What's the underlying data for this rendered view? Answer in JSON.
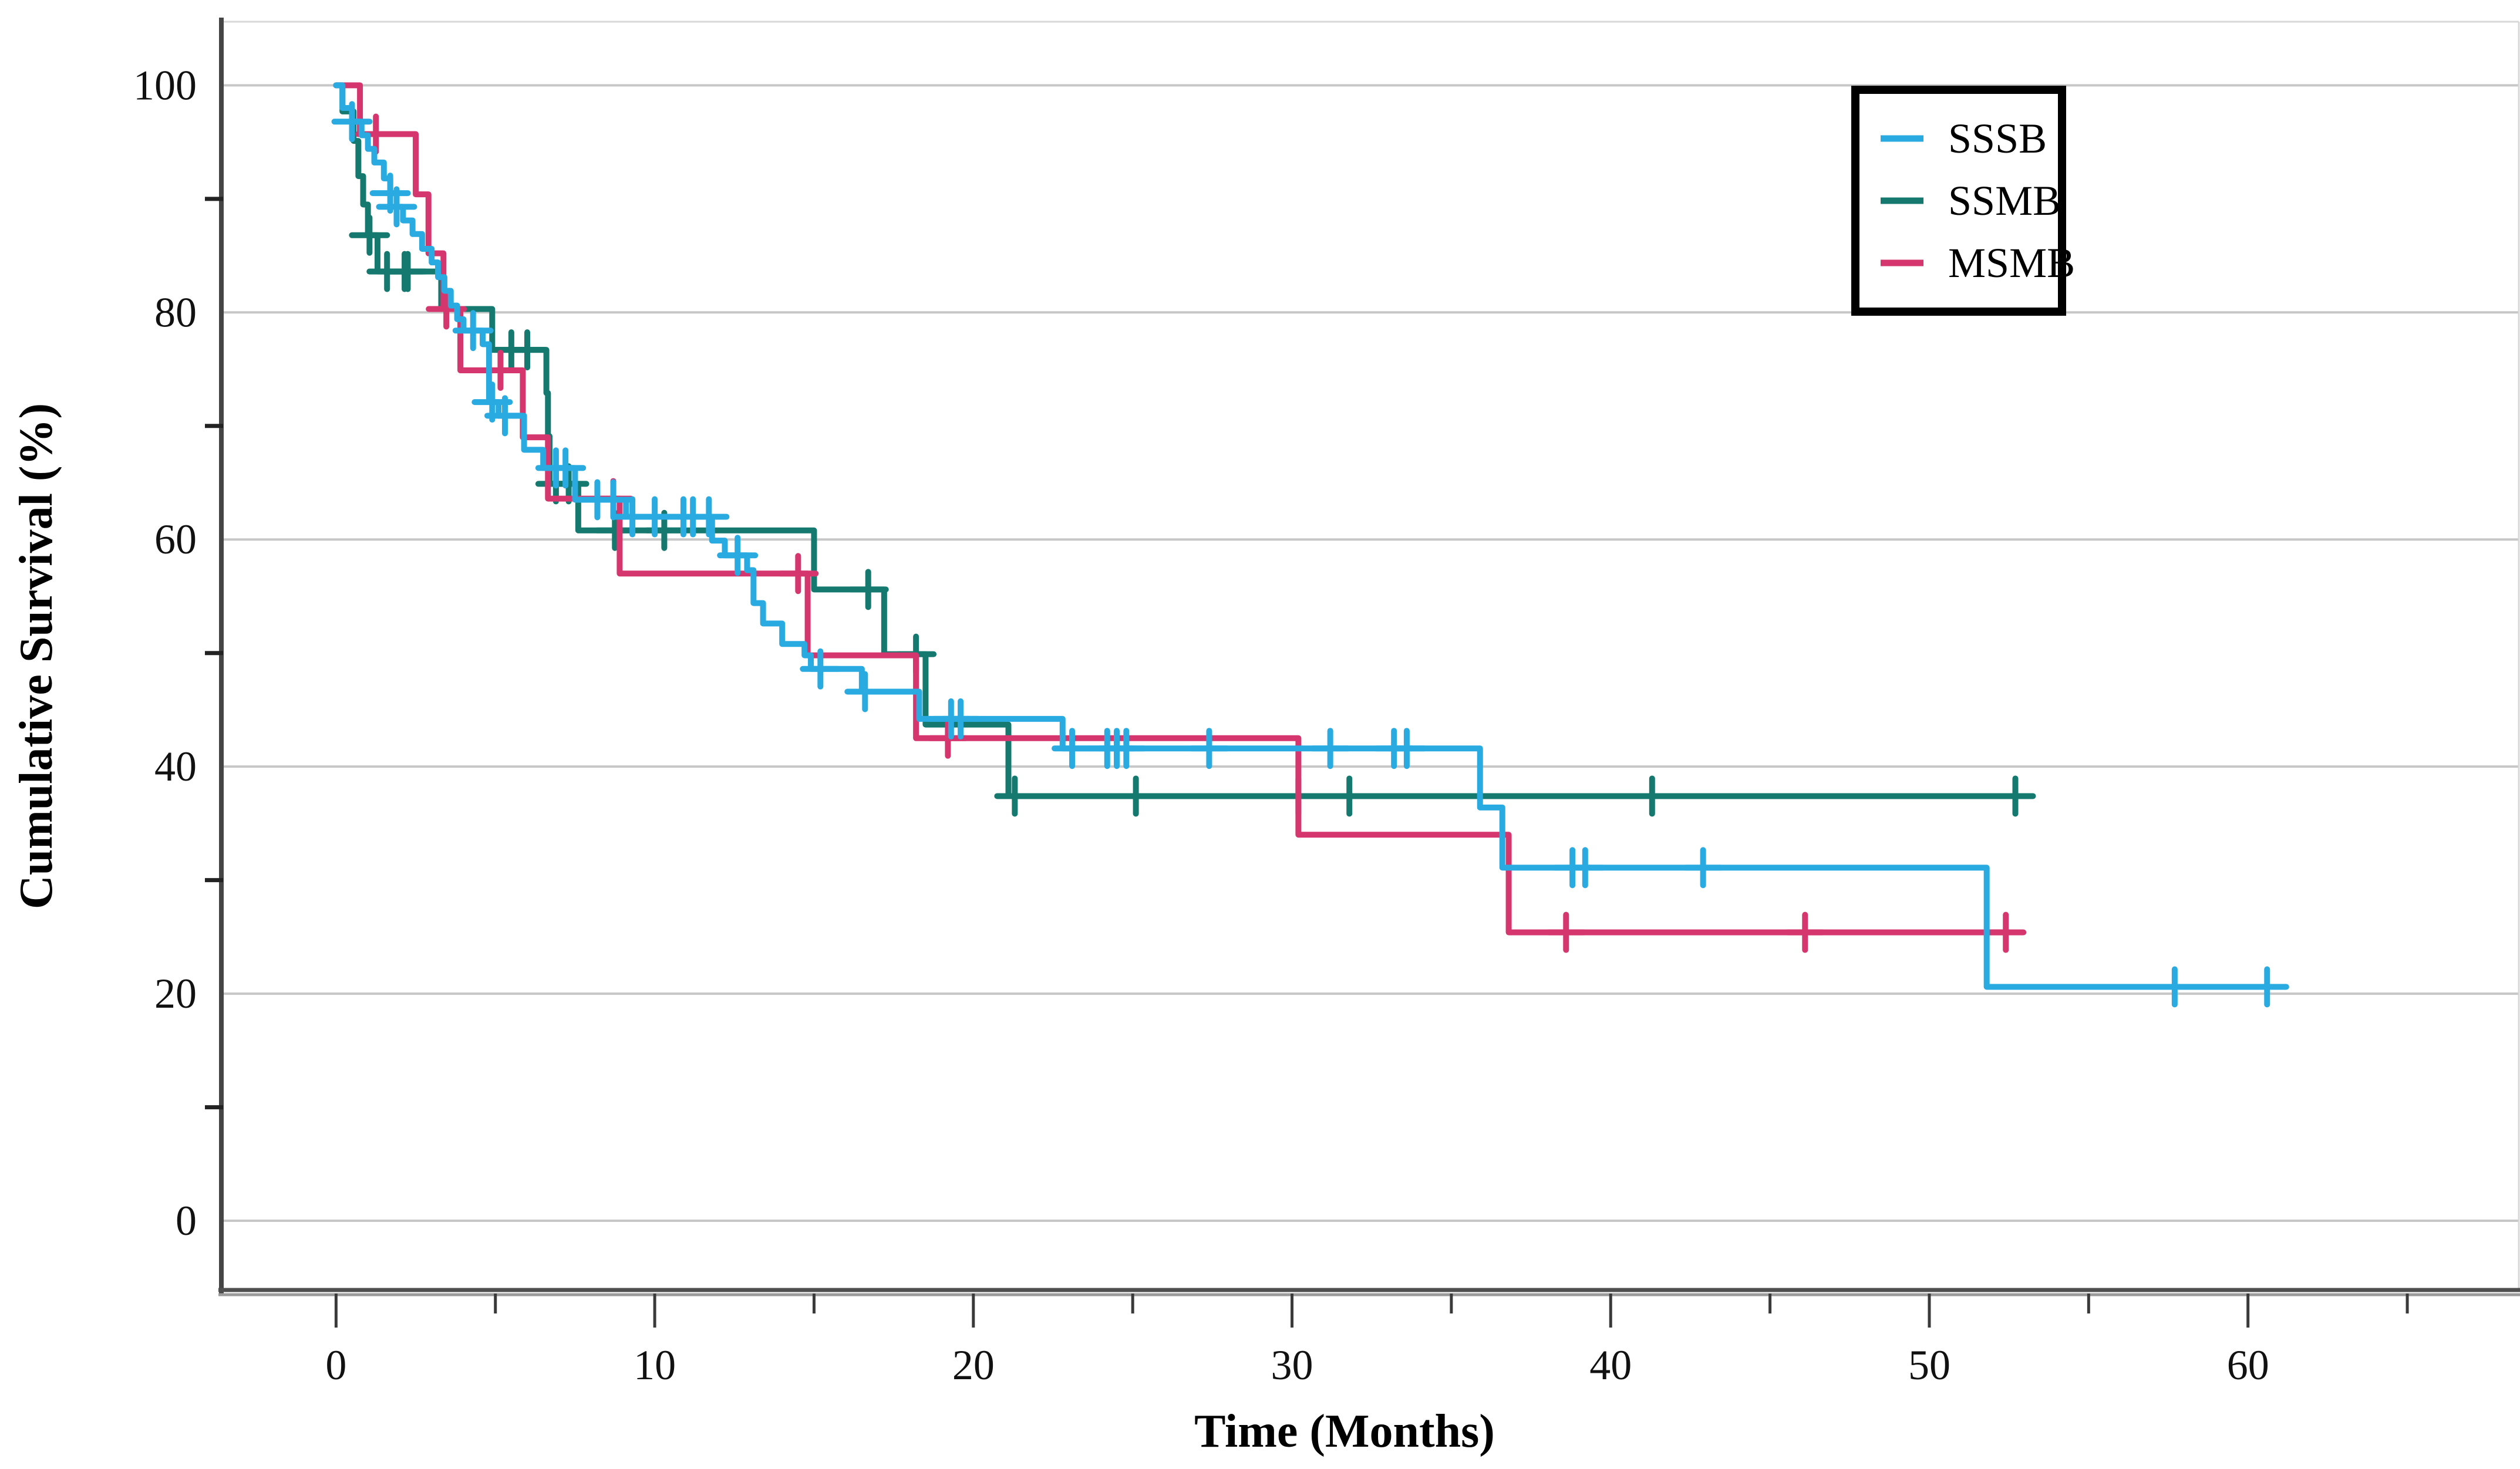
{
  "figure": {
    "background": "#ffffff",
    "gridline_color": "#c7c7c7",
    "axis_color": "#4a4a4a",
    "text_color": "#111111"
  },
  "legend": {
    "position": "top-right",
    "border_color": "#000000",
    "entries": [
      {
        "label": "SSSB",
        "color": "#29ABE2"
      },
      {
        "label": "SSMB",
        "color": "#15796F"
      },
      {
        "label": "MSMB",
        "color": "#D5366E"
      }
    ]
  },
  "chart_data": {
    "type": "line",
    "subtype": "kaplan-meier-step",
    "title": "",
    "xlabel": "Time (Months)",
    "ylabel": "Cumulative Survival (%)",
    "xlim": [
      -3.6,
      68.5
    ],
    "ylim": [
      -6.2,
      105.6
    ],
    "x_major_ticks": [
      0,
      10,
      20,
      30,
      40,
      50,
      60
    ],
    "x_minor_ticks": [
      5,
      15,
      25,
      35,
      45,
      55,
      65
    ],
    "y_gridlines": [
      0,
      20,
      40,
      60,
      80,
      100
    ],
    "y_minor_ticks": [
      10,
      30,
      50,
      70,
      90
    ],
    "grid": "horizontal",
    "legend_position": "top-right",
    "series": [
      {
        "name": "SSSB",
        "color": "#29ABE2",
        "end_t": 61.2,
        "steps": [
          [
            0,
            100
          ],
          [
            0.2,
            98
          ],
          [
            0.5,
            96.8
          ],
          [
            0.8,
            95.6
          ],
          [
            1.0,
            94.4
          ],
          [
            1.2,
            93.2
          ],
          [
            1.5,
            91.8
          ],
          [
            1.7,
            90.5
          ],
          [
            1.9,
            89.3
          ],
          [
            2.1,
            88.1
          ],
          [
            2.4,
            86.9
          ],
          [
            2.7,
            85.6
          ],
          [
            3.0,
            84.4
          ],
          [
            3.2,
            83.1
          ],
          [
            3.4,
            81.9
          ],
          [
            3.6,
            80.6
          ],
          [
            3.8,
            79.4
          ],
          [
            4.0,
            78.4
          ],
          [
            4.6,
            77.2
          ],
          [
            4.8,
            72.1
          ],
          [
            5.1,
            70.9
          ],
          [
            5.9,
            67.9
          ],
          [
            6.5,
            66.3
          ],
          [
            7.5,
            63.5
          ],
          [
            9.1,
            62.0
          ],
          [
            11.8,
            59.9
          ],
          [
            12.2,
            58.6
          ],
          [
            12.9,
            57.3
          ],
          [
            13.1,
            54.4
          ],
          [
            13.4,
            52.6
          ],
          [
            14.0,
            50.8
          ],
          [
            14.7,
            49.8
          ],
          [
            14.9,
            48.6
          ],
          [
            16.5,
            46.6
          ],
          [
            18.3,
            44.2
          ],
          [
            22.8,
            41.6
          ],
          [
            35.9,
            36.4
          ],
          [
            36.6,
            31.1
          ],
          [
            51.8,
            20.6
          ]
        ],
        "censors": [
          [
            0.5,
            96.8
          ],
          [
            1.7,
            90.5
          ],
          [
            1.9,
            89.3
          ],
          [
            4.3,
            78.4
          ],
          [
            4.9,
            72.1
          ],
          [
            5.3,
            70.9
          ],
          [
            6.9,
            66.3
          ],
          [
            7.2,
            66.3
          ],
          [
            8.2,
            63.5
          ],
          [
            8.7,
            63.5
          ],
          [
            9.3,
            62.0
          ],
          [
            10.0,
            62.0
          ],
          [
            10.9,
            62.0
          ],
          [
            11.2,
            62.0
          ],
          [
            11.7,
            62.0
          ],
          [
            12.6,
            58.6
          ],
          [
            15.2,
            48.6
          ],
          [
            16.6,
            46.6
          ],
          [
            19.3,
            44.2
          ],
          [
            19.6,
            44.2
          ],
          [
            23.1,
            41.6
          ],
          [
            24.2,
            41.6
          ],
          [
            24.5,
            41.6
          ],
          [
            24.8,
            41.6
          ],
          [
            27.4,
            41.6
          ],
          [
            31.2,
            41.6
          ],
          [
            33.2,
            41.6
          ],
          [
            33.6,
            41.6
          ],
          [
            38.8,
            31.1
          ],
          [
            39.2,
            31.1
          ],
          [
            42.9,
            31.1
          ],
          [
            57.7,
            20.6
          ],
          [
            60.6,
            20.6
          ]
        ]
      },
      {
        "name": "SSMB",
        "color": "#15796F",
        "end_t": 52.8,
        "steps": [
          [
            0,
            100
          ],
          [
            0.2,
            97.7
          ],
          [
            0.55,
            95.1
          ],
          [
            0.7,
            92.0
          ],
          [
            0.85,
            89.5
          ],
          [
            1.0,
            86.8
          ],
          [
            1.3,
            83.6
          ],
          [
            3.3,
            80.3
          ],
          [
            4.9,
            76.7
          ],
          [
            6.6,
            72.9
          ],
          [
            6.65,
            69.1
          ],
          [
            6.7,
            64.9
          ],
          [
            7.6,
            60.8
          ],
          [
            15.0,
            55.6
          ],
          [
            17.2,
            49.9
          ],
          [
            18.5,
            43.7
          ],
          [
            21.1,
            37.4
          ]
        ],
        "censors": [
          [
            1.05,
            86.8
          ],
          [
            1.6,
            83.6
          ],
          [
            2.15,
            83.6
          ],
          [
            2.25,
            83.6
          ],
          [
            5.5,
            76.7
          ],
          [
            6.0,
            76.7
          ],
          [
            6.9,
            64.9
          ],
          [
            7.3,
            64.9
          ],
          [
            8.75,
            60.8
          ],
          [
            10.3,
            60.8
          ],
          [
            16.7,
            55.6
          ],
          [
            18.2,
            49.9
          ],
          [
            21.3,
            37.4
          ],
          [
            25.1,
            37.4
          ],
          [
            30.2,
            37.4
          ],
          [
            31.8,
            37.4
          ],
          [
            41.3,
            37.4
          ],
          [
            52.7,
            37.4
          ]
        ]
      },
      {
        "name": "MSMB",
        "color": "#D5366E",
        "end_t": 52.5,
        "steps": [
          [
            0,
            100
          ],
          [
            0.75,
            95.7
          ],
          [
            2.5,
            90.4
          ],
          [
            2.9,
            85.2
          ],
          [
            3.37,
            80.3
          ],
          [
            3.9,
            74.9
          ],
          [
            5.86,
            69.0
          ],
          [
            6.65,
            63.6
          ],
          [
            8.9,
            57.0
          ],
          [
            14.8,
            49.8
          ],
          [
            18.2,
            42.5
          ],
          [
            30.2,
            34.0
          ],
          [
            36.8,
            25.4
          ]
        ],
        "censors": [
          [
            1.25,
            95.7
          ],
          [
            3.46,
            80.3
          ],
          [
            5.16,
            74.9
          ],
          [
            8.7,
            63.6
          ],
          [
            14.5,
            57.0
          ],
          [
            19.2,
            42.5
          ],
          [
            38.6,
            25.4
          ],
          [
            46.1,
            25.4
          ],
          [
            52.4,
            25.4
          ]
        ]
      }
    ]
  }
}
